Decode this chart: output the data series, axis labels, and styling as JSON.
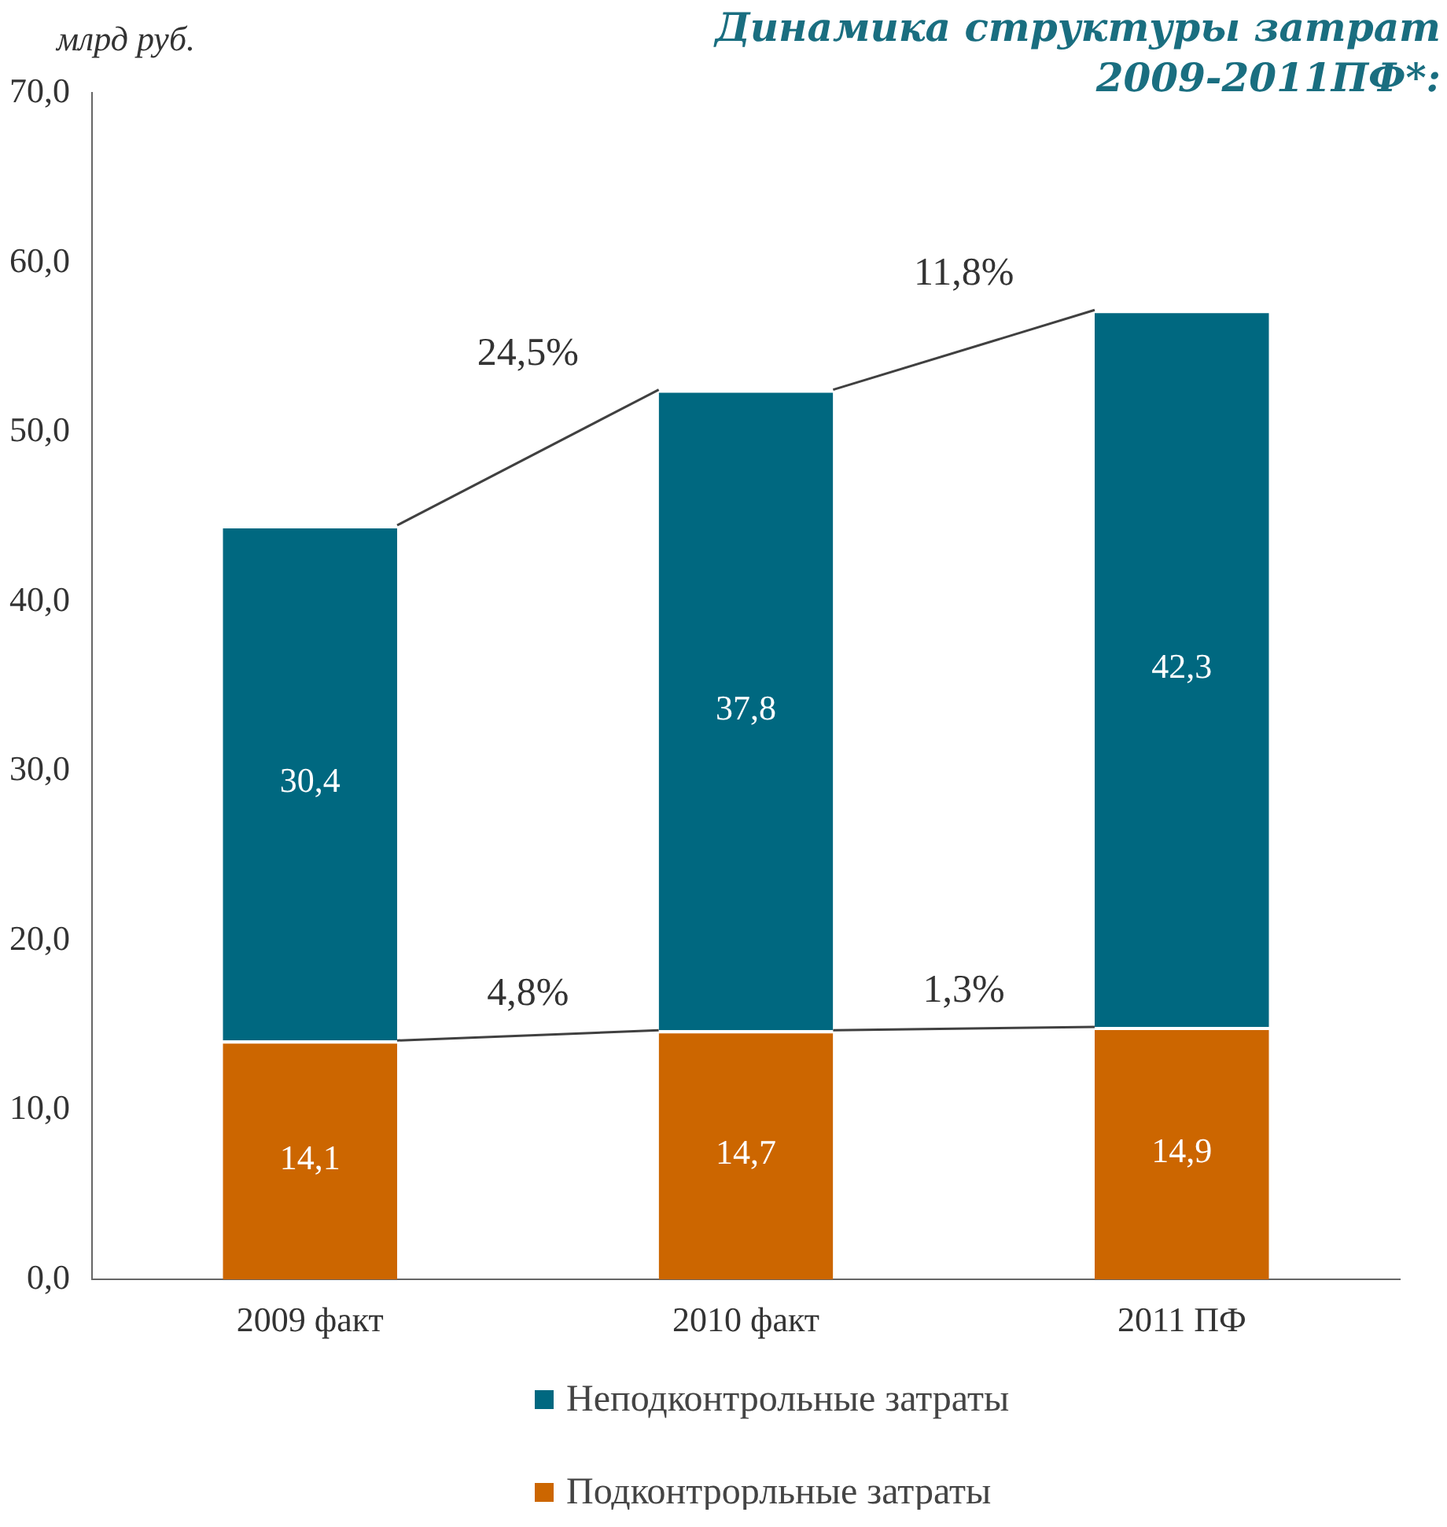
{
  "chart_data": {
    "type": "bar",
    "title": "Динамика структуры затрат 2009-2011ПФ*:",
    "ylabel": "млрд руб.",
    "categories": [
      "2009 факт",
      "2010 факт",
      "2011 ПФ"
    ],
    "stacked": true,
    "series": [
      {
        "name": "Подконтрорльные затраты",
        "color": "#cc6600",
        "values": [
          14.1,
          14.7,
          14.9
        ],
        "value_labels": [
          "14,1",
          "14,7",
          "14,9"
        ]
      },
      {
        "name": "Неподконтрольные затраты",
        "color": "#006880",
        "values": [
          30.4,
          37.8,
          42.3
        ],
        "value_labels": [
          "30,4",
          "37,8",
          "42,3"
        ]
      }
    ],
    "ylim": [
      0,
      70
    ],
    "yticks": [
      {
        "value": 0,
        "label": "0,0"
      },
      {
        "value": 10,
        "label": "10,0"
      },
      {
        "value": 20,
        "label": "20,0"
      },
      {
        "value": 30,
        "label": "30,0"
      },
      {
        "value": 40,
        "label": "40,0"
      },
      {
        "value": 50,
        "label": "50,0"
      },
      {
        "value": 60,
        "label": "60,0"
      },
      {
        "value": 70,
        "label": "70,0"
      }
    ],
    "annotations": [
      "24,5%",
      "11,8%",
      "4,8%",
      "1,3%"
    ],
    "grid": false,
    "legend": "bottom"
  }
}
